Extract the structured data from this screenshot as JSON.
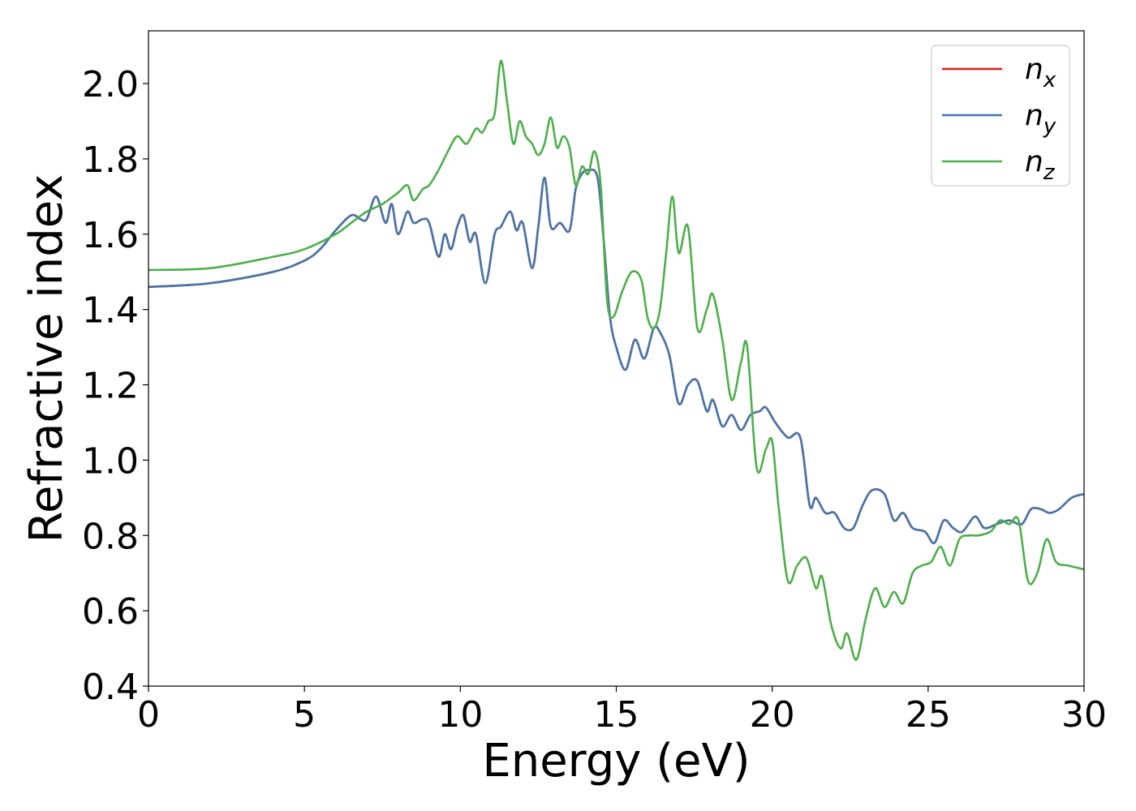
{
  "chart_data": {
    "type": "line",
    "xlabel": "Energy (eV)",
    "ylabel": "Refractive index",
    "xlim": [
      0,
      30
    ],
    "ylim": [
      0.4,
      2.14
    ],
    "xticks": [
      "0",
      "5",
      "10",
      "15",
      "20",
      "25",
      "30"
    ],
    "yticks": [
      "0.4",
      "0.6",
      "0.8",
      "1.0",
      "1.2",
      "1.4",
      "1.6",
      "1.8",
      "2.0"
    ],
    "grid": false,
    "legend_position": "top-right",
    "series": [
      {
        "name": "n",
        "subscript": "x",
        "color": "#e41a1c",
        "x": [
          0,
          2,
          4,
          5,
          5.5,
          6,
          6.5,
          6.8,
          7.0,
          7.3,
          7.6,
          7.8,
          8.0,
          8.3,
          8.5,
          8.8,
          9.0,
          9.3,
          9.5,
          9.7,
          9.9,
          10.1,
          10.3,
          10.5,
          10.8,
          11.1,
          11.3,
          11.6,
          11.8,
          12.0,
          12.3,
          12.5,
          12.7,
          12.9,
          13.2,
          13.5,
          13.7,
          13.9,
          14.1,
          14.4,
          14.6,
          14.8,
          15.0,
          15.3,
          15.6,
          15.9,
          16.2,
          16.4,
          16.7,
          17.0,
          17.3,
          17.6,
          17.9,
          18.1,
          18.4,
          18.7,
          19.0,
          19.3,
          19.6,
          19.8,
          20.1,
          20.5,
          20.9,
          21.2,
          21.4,
          21.7,
          22.0,
          22.3,
          22.6,
          22.9,
          23.2,
          23.6,
          23.9,
          24.2,
          24.5,
          24.9,
          25.2,
          25.5,
          25.8,
          26.1,
          26.5,
          26.8,
          27.2,
          27.6,
          28.0,
          28.3,
          28.6,
          28.9,
          29.2,
          29.6,
          30.0
        ],
        "values": [
          1.46,
          1.47,
          1.5,
          1.53,
          1.56,
          1.61,
          1.65,
          1.64,
          1.64,
          1.7,
          1.63,
          1.68,
          1.6,
          1.66,
          1.63,
          1.64,
          1.63,
          1.54,
          1.6,
          1.56,
          1.62,
          1.65,
          1.58,
          1.6,
          1.47,
          1.6,
          1.62,
          1.66,
          1.61,
          1.63,
          1.51,
          1.62,
          1.75,
          1.62,
          1.63,
          1.61,
          1.72,
          1.76,
          1.77,
          1.75,
          1.58,
          1.38,
          1.3,
          1.24,
          1.32,
          1.27,
          1.35,
          1.34,
          1.28,
          1.15,
          1.2,
          1.21,
          1.13,
          1.16,
          1.09,
          1.12,
          1.08,
          1.12,
          1.13,
          1.14,
          1.1,
          1.06,
          1.06,
          0.88,
          0.9,
          0.86,
          0.86,
          0.82,
          0.82,
          0.88,
          0.92,
          0.91,
          0.84,
          0.86,
          0.82,
          0.81,
          0.78,
          0.84,
          0.82,
          0.81,
          0.85,
          0.82,
          0.83,
          0.84,
          0.83,
          0.87,
          0.87,
          0.86,
          0.87,
          0.9,
          0.91
        ]
      },
      {
        "name": "n",
        "subscript": "y",
        "color": "#4477aa",
        "x": [
          0,
          2,
          4,
          5,
          5.5,
          6,
          6.5,
          6.8,
          7.0,
          7.3,
          7.6,
          7.8,
          8.0,
          8.3,
          8.5,
          8.8,
          9.0,
          9.3,
          9.5,
          9.7,
          9.9,
          10.1,
          10.3,
          10.5,
          10.8,
          11.1,
          11.3,
          11.6,
          11.8,
          12.0,
          12.3,
          12.5,
          12.7,
          12.9,
          13.2,
          13.5,
          13.7,
          13.9,
          14.1,
          14.4,
          14.6,
          14.8,
          15.0,
          15.3,
          15.6,
          15.9,
          16.2,
          16.4,
          16.7,
          17.0,
          17.3,
          17.6,
          17.9,
          18.1,
          18.4,
          18.7,
          19.0,
          19.3,
          19.6,
          19.8,
          20.1,
          20.5,
          20.9,
          21.2,
          21.4,
          21.7,
          22.0,
          22.3,
          22.6,
          22.9,
          23.2,
          23.6,
          23.9,
          24.2,
          24.5,
          24.9,
          25.2,
          25.5,
          25.8,
          26.1,
          26.5,
          26.8,
          27.2,
          27.6,
          28.0,
          28.3,
          28.6,
          28.9,
          29.2,
          29.6,
          30.0
        ],
        "values": [
          1.46,
          1.47,
          1.5,
          1.53,
          1.56,
          1.61,
          1.65,
          1.64,
          1.64,
          1.7,
          1.63,
          1.68,
          1.6,
          1.66,
          1.63,
          1.64,
          1.63,
          1.54,
          1.6,
          1.56,
          1.62,
          1.65,
          1.58,
          1.6,
          1.47,
          1.6,
          1.62,
          1.66,
          1.61,
          1.63,
          1.51,
          1.62,
          1.75,
          1.62,
          1.63,
          1.61,
          1.72,
          1.76,
          1.77,
          1.75,
          1.58,
          1.38,
          1.3,
          1.24,
          1.32,
          1.27,
          1.35,
          1.34,
          1.28,
          1.15,
          1.2,
          1.21,
          1.13,
          1.16,
          1.09,
          1.12,
          1.08,
          1.12,
          1.13,
          1.14,
          1.1,
          1.06,
          1.06,
          0.88,
          0.9,
          0.86,
          0.86,
          0.82,
          0.82,
          0.88,
          0.92,
          0.91,
          0.84,
          0.86,
          0.82,
          0.81,
          0.78,
          0.84,
          0.82,
          0.81,
          0.85,
          0.82,
          0.83,
          0.84,
          0.83,
          0.87,
          0.87,
          0.86,
          0.87,
          0.9,
          0.91
        ]
      },
      {
        "name": "n",
        "subscript": "z",
        "color": "#4daf4a",
        "x": [
          0,
          2,
          4,
          5,
          6,
          6.5,
          7.0,
          7.5,
          8.0,
          8.3,
          8.5,
          8.8,
          9.0,
          9.3,
          9.6,
          9.9,
          10.2,
          10.5,
          10.7,
          10.9,
          11.1,
          11.3,
          11.5,
          11.7,
          11.9,
          12.1,
          12.3,
          12.5,
          12.7,
          12.9,
          13.1,
          13.3,
          13.5,
          13.7,
          13.9,
          14.1,
          14.3,
          14.5,
          14.7,
          14.9,
          15.2,
          15.5,
          15.8,
          16.0,
          16.2,
          16.4,
          16.6,
          16.8,
          17.0,
          17.3,
          17.6,
          17.9,
          18.1,
          18.4,
          18.7,
          19.0,
          19.2,
          19.5,
          19.8,
          20.0,
          20.2,
          20.5,
          20.8,
          21.1,
          21.4,
          21.6,
          21.9,
          22.2,
          22.4,
          22.7,
          23.0,
          23.3,
          23.6,
          23.9,
          24.2,
          24.5,
          24.8,
          25.1,
          25.4,
          25.7,
          26.0,
          26.3,
          26.6,
          27.0,
          27.3,
          27.6,
          27.9,
          28.2,
          28.5,
          28.8,
          29.1,
          29.5,
          30.0
        ],
        "values": [
          1.505,
          1.51,
          1.54,
          1.56,
          1.6,
          1.63,
          1.66,
          1.68,
          1.71,
          1.73,
          1.69,
          1.72,
          1.73,
          1.77,
          1.82,
          1.86,
          1.84,
          1.88,
          1.87,
          1.9,
          1.92,
          2.06,
          1.95,
          1.84,
          1.9,
          1.86,
          1.84,
          1.81,
          1.84,
          1.91,
          1.83,
          1.86,
          1.83,
          1.73,
          1.78,
          1.76,
          1.82,
          1.73,
          1.43,
          1.38,
          1.45,
          1.5,
          1.48,
          1.38,
          1.35,
          1.4,
          1.55,
          1.7,
          1.55,
          1.62,
          1.35,
          1.4,
          1.44,
          1.32,
          1.16,
          1.26,
          1.3,
          0.98,
          1.03,
          1.05,
          0.88,
          0.68,
          0.72,
          0.74,
          0.66,
          0.69,
          0.56,
          0.5,
          0.54,
          0.47,
          0.58,
          0.66,
          0.61,
          0.65,
          0.62,
          0.7,
          0.72,
          0.73,
          0.77,
          0.72,
          0.79,
          0.8,
          0.8,
          0.81,
          0.84,
          0.83,
          0.84,
          0.68,
          0.7,
          0.79,
          0.73,
          0.72,
          0.71
        ]
      }
    ]
  }
}
